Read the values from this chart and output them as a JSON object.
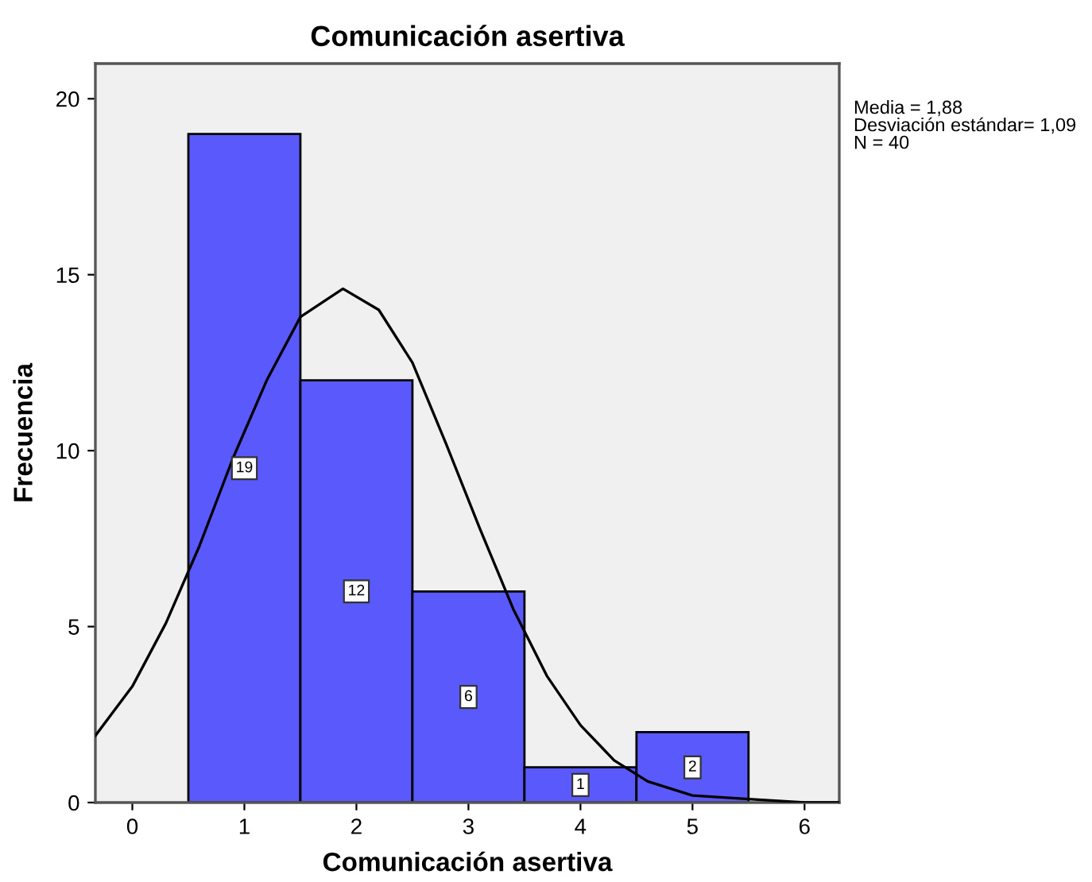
{
  "chart_data": {
    "type": "histogram",
    "title": "Comunicación asertiva",
    "xlabel": "Comunicación asertiva",
    "ylabel": "Frecuencia",
    "bins": [
      0.5,
      1.5,
      2.5,
      3.5,
      4.5,
      5.5
    ],
    "values": [
      19,
      12,
      6,
      1,
      2
    ],
    "color": "#5a5afc",
    "value_labels": [
      "19",
      "12",
      "6",
      "1",
      "2"
    ],
    "series": [
      {
        "type": "line",
        "color": "#000000",
        "x": [
          -0.33,
          0,
          0.3,
          0.6,
          0.9,
          1.2,
          1.5,
          1.88,
          2.2,
          2.5,
          2.8,
          3.1,
          3.4,
          3.7,
          4.0,
          4.3,
          4.6,
          5.0,
          5.5,
          6.0,
          6.3
        ],
        "values": [
          1.9,
          3.3,
          5.1,
          7.3,
          9.8,
          12.0,
          13.8,
          14.6,
          14.0,
          12.5,
          10.2,
          7.8,
          5.5,
          3.6,
          2.2,
          1.2,
          0.6,
          0.2,
          0.1,
          0,
          0
        ]
      }
    ],
    "marker": "none",
    "line_style": "solid",
    "xlim": [
      -0.33,
      6.31
    ],
    "ylim": [
      0,
      21
    ],
    "xticks": [
      0,
      1,
      2,
      3,
      4,
      5,
      6
    ],
    "yticks": [
      0,
      5,
      10,
      15,
      20
    ],
    "grid": false,
    "legend": false,
    "annotations": [
      "Media = 1,88\nDesviación estándar= 1,09\nN = 40"
    ]
  }
}
